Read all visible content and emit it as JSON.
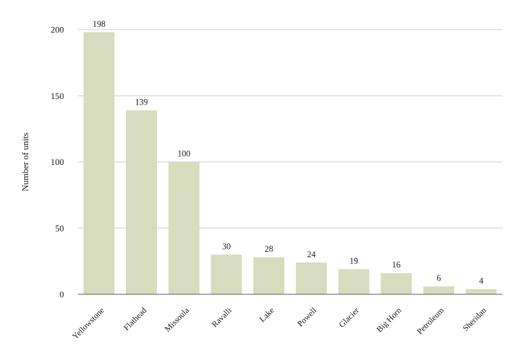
{
  "chart_data": {
    "type": "bar",
    "title": "",
    "xlabel": "",
    "ylabel": "Number of units",
    "categories": [
      "Yellowstone",
      "Flathead",
      "Missoula",
      "Ravalli",
      "Lake",
      "Powell",
      "Glacier",
      "Big Horn",
      "Petroleum",
      "Sheridan"
    ],
    "values": [
      198,
      139,
      100,
      30,
      28,
      24,
      19,
      16,
      6,
      4
    ],
    "ylim": [
      0,
      200
    ],
    "yticks": [
      0,
      50,
      100,
      150,
      200
    ],
    "grid": true,
    "legend": "none",
    "colors": {
      "bar": "#d7dcbe",
      "grid": "#cccccc",
      "axis": "#555555"
    }
  }
}
